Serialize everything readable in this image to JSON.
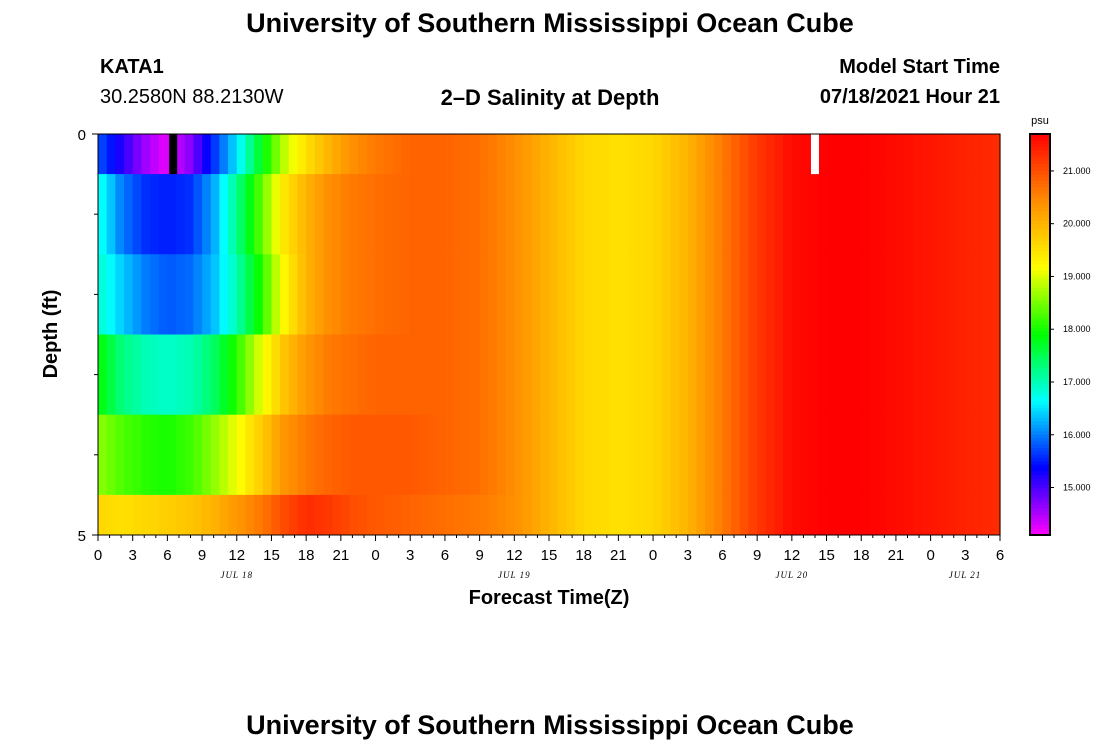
{
  "header": {
    "title": "University of Southern Mississippi Ocean Cube",
    "station_id": "KATA1",
    "station_coords": "30.2580N  88.2130W",
    "chart_title": "2–D Salinity at Depth",
    "model_label": "Model Start Time",
    "model_time": "07/18/2021 Hour 21"
  },
  "footer": {
    "title": "University of Southern Mississippi Ocean Cube"
  },
  "chart_data": {
    "type": "heatmap",
    "title": "2–D Salinity at Depth",
    "xlabel": "Forecast Time(Z)",
    "ylabel": "Depth (ft)",
    "x_tick_labels": [
      "0",
      "3",
      "6",
      "9",
      "12",
      "15",
      "18",
      "21",
      "0",
      "3",
      "6",
      "9",
      "12",
      "15",
      "18",
      "21",
      "0",
      "3",
      "6",
      "9",
      "12",
      "15",
      "18",
      "21",
      "0",
      "3",
      "6"
    ],
    "x_date_labels": [
      "JUL 18",
      "JUL 19",
      "JUL 20",
      "JUL 21"
    ],
    "x_range_hours": [
      0,
      78
    ],
    "y_tick_labels": [
      "0",
      "5"
    ],
    "y_range_ft": [
      0,
      5
    ],
    "colorbar_unit": "psu",
    "colorbar_range": [
      14.1,
      21.7
    ],
    "colorbar_tick_labels": [
      "15.000",
      "16.000",
      "17.000",
      "18.000",
      "19.000",
      "20.000",
      "21.000"
    ],
    "colorbar_tick_values": [
      15,
      16,
      17,
      18,
      19,
      20,
      21
    ],
    "depth_layers": [
      0.5,
      1.5,
      2.5,
      3.5,
      4.5
    ],
    "depth_layers_top_ft": [
      0,
      0.5,
      1.5,
      2.5,
      3.5,
      4.5
    ],
    "salinity_time_hours": [
      0,
      2,
      4,
      6,
      8,
      10,
      12,
      14,
      16,
      18,
      20,
      22,
      24,
      27,
      30,
      33,
      36,
      39,
      42,
      45,
      48,
      51,
      54,
      57,
      60,
      63,
      66,
      69,
      72,
      75,
      78
    ],
    "salinity_by_layer": [
      [
        15.8,
        15.2,
        14.6,
        14.2,
        14.7,
        15.6,
        16.5,
        17.7,
        18.8,
        19.5,
        20.0,
        20.4,
        20.6,
        20.8,
        20.8,
        20.7,
        20.4,
        20.0,
        19.6,
        19.5,
        19.6,
        20.0,
        20.6,
        21.2,
        21.6,
        21.7,
        21.7,
        21.6,
        21.5,
        21.4,
        21.3
      ],
      [
        16.8,
        16.0,
        15.6,
        15.5,
        15.6,
        16.2,
        17.2,
        18.3,
        19.4,
        20.0,
        20.4,
        20.6,
        20.7,
        20.8,
        20.8,
        20.7,
        20.4,
        20.0,
        19.6,
        19.5,
        19.6,
        20.0,
        20.6,
        21.2,
        21.6,
        21.7,
        21.7,
        21.6,
        21.5,
        21.4,
        21.3
      ],
      [
        16.9,
        16.4,
        16.0,
        15.8,
        15.9,
        16.3,
        17.0,
        18.0,
        19.2,
        20.0,
        20.4,
        20.6,
        20.7,
        20.8,
        20.8,
        20.7,
        20.4,
        20.0,
        19.6,
        19.5,
        19.6,
        20.0,
        20.6,
        21.2,
        21.6,
        21.7,
        21.7,
        21.6,
        21.5,
        21.4,
        21.3
      ],
      [
        17.9,
        17.3,
        17.0,
        16.9,
        17.0,
        17.4,
        18.1,
        19.0,
        19.8,
        20.3,
        20.6,
        20.7,
        20.8,
        20.8,
        20.8,
        20.7,
        20.4,
        20.0,
        19.6,
        19.5,
        19.6,
        20.0,
        20.6,
        21.2,
        21.6,
        21.7,
        21.7,
        21.6,
        21.5,
        21.4,
        21.3
      ],
      [
        18.6,
        18.3,
        18.1,
        18.0,
        18.2,
        18.6,
        19.1,
        19.7,
        20.3,
        20.6,
        20.8,
        20.9,
        20.9,
        20.9,
        20.8,
        20.7,
        20.4,
        20.0,
        19.6,
        19.5,
        19.6,
        20.0,
        20.6,
        21.2,
        21.6,
        21.7,
        21.7,
        21.6,
        21.5,
        21.4,
        21.3
      ],
      [
        19.6,
        19.5,
        19.6,
        19.7,
        19.8,
        20.0,
        20.3,
        20.6,
        21.0,
        21.3,
        21.2,
        21.0,
        20.9,
        20.8,
        20.7,
        20.6,
        20.4,
        20.0,
        19.6,
        19.5,
        19.6,
        20.0,
        20.6,
        21.2,
        21.6,
        21.7,
        21.7,
        21.6,
        21.5,
        21.4,
        21.3
      ]
    ],
    "markers": [
      {
        "hour": 6.5,
        "layer": 0,
        "color": "#000000"
      },
      {
        "hour": 62,
        "layer": 0,
        "color": "#ffffff"
      }
    ],
    "colorscale": [
      "#ff00ff",
      "#0000ff",
      "#00ffff",
      "#00ff00",
      "#ffff00",
      "#ff8c00",
      "#ff0000"
    ]
  }
}
